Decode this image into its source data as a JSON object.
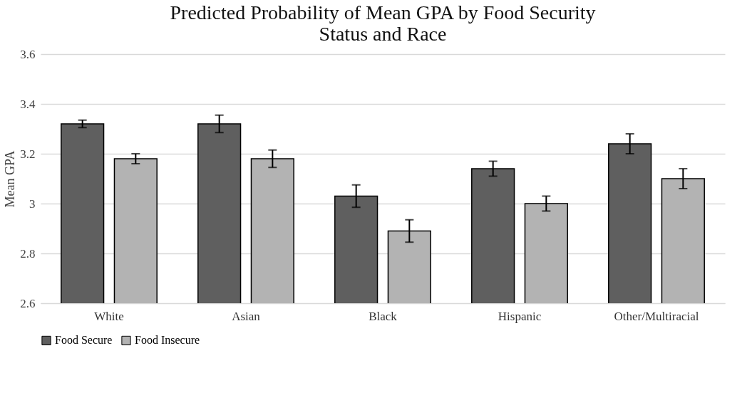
{
  "chart_data": {
    "type": "bar",
    "title": [
      "Predicted Probability of Mean GPA by Food Security",
      "Status and Race"
    ],
    "ylabel": "Mean GPA",
    "categories": [
      "White",
      "Asian",
      "Black",
      "Hispanic",
      "Other/Multiracial"
    ],
    "series": [
      {
        "name": "Food Secure",
        "color": "#5f5f5f",
        "values": [
          3.32,
          3.32,
          3.03,
          3.14,
          3.24
        ],
        "errors": [
          0.015,
          0.035,
          0.045,
          0.03,
          0.04
        ]
      },
      {
        "name": "Food Insecure",
        "color": "#b3b3b3",
        "values": [
          3.18,
          3.18,
          2.89,
          3.0,
          3.1
        ],
        "errors": [
          0.02,
          0.035,
          0.045,
          0.03,
          0.04
        ]
      }
    ],
    "ylim": [
      2.6,
      3.6
    ],
    "yticks": [
      2.6,
      2.8,
      3,
      3.2,
      3.4,
      3.6
    ],
    "grid": "y",
    "legend": "bottom"
  }
}
